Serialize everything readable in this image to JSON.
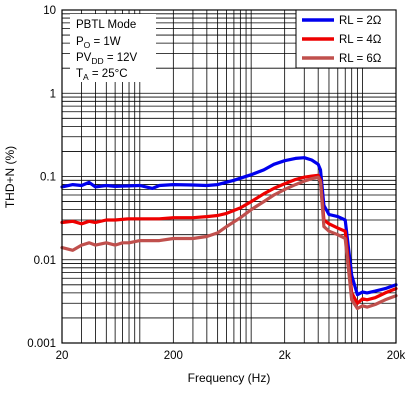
{
  "chart_data": {
    "type": "line",
    "xlabel": "Frequency (Hz)",
    "ylabel": "THD+N (%)",
    "x_scale": "log",
    "y_scale": "log",
    "xlim": [
      20,
      20000
    ],
    "ylim": [
      0.001,
      10
    ],
    "grid": true,
    "legend_position": "top-right",
    "x_ticks": [
      {
        "value": 20,
        "label": "20"
      },
      {
        "value": 200,
        "label": "200"
      },
      {
        "value": 2000,
        "label": "2k"
      },
      {
        "value": 20000,
        "label": "20k"
      }
    ],
    "y_ticks": [
      {
        "value": 10,
        "label": "10"
      },
      {
        "value": 1,
        "label": "1"
      },
      {
        "value": 0.1,
        "label": "0.1"
      },
      {
        "value": 0.01,
        "label": "0.01"
      },
      {
        "value": 0.001,
        "label": "0.001"
      }
    ],
    "annotation": {
      "line1": "PBTL Mode",
      "line2_main": "P",
      "line2_sub": "O",
      "line2_rest": " = 1W",
      "line3_main": "PV",
      "line3_sub": "DD",
      "line3_rest": " = 12V",
      "line4_main": "T",
      "line4_sub": "A",
      "line4_rest": " = 25°C"
    },
    "series": [
      {
        "name": "RL = 2Ω",
        "color": "#0000ee",
        "x": [
          20,
          25,
          30,
          35,
          40,
          50,
          60,
          80,
          100,
          130,
          150,
          200,
          300,
          400,
          500,
          700,
          1000,
          1300,
          1600,
          2000,
          2500,
          3000,
          3500,
          4000,
          4200,
          4500,
          5000,
          6000,
          7000,
          8000,
          9000,
          10000,
          11000,
          13000,
          16000,
          20000
        ],
        "y": [
          0.075,
          0.08,
          0.078,
          0.085,
          0.075,
          0.078,
          0.076,
          0.077,
          0.078,
          0.072,
          0.078,
          0.08,
          0.079,
          0.078,
          0.08,
          0.09,
          0.105,
          0.12,
          0.14,
          0.155,
          0.165,
          0.168,
          0.158,
          0.14,
          0.12,
          0.045,
          0.035,
          0.033,
          0.03,
          0.0065,
          0.0038,
          0.0041,
          0.004,
          0.0042,
          0.0045,
          0.005
        ]
      },
      {
        "name": "RL = 4Ω",
        "color": "#ee0000",
        "x": [
          20,
          25,
          30,
          35,
          40,
          50,
          60,
          80,
          100,
          150,
          200,
          300,
          400,
          500,
          600,
          800,
          1000,
          1300,
          1600,
          2000,
          2500,
          3000,
          3500,
          4000,
          4200,
          4500,
          5000,
          6000,
          7000,
          8000,
          9000,
          10000,
          11000,
          13000,
          16000,
          20000
        ],
        "y": [
          0.028,
          0.029,
          0.027,
          0.029,
          0.028,
          0.03,
          0.03,
          0.031,
          0.031,
          0.031,
          0.032,
          0.032,
          0.033,
          0.034,
          0.036,
          0.042,
          0.05,
          0.062,
          0.072,
          0.082,
          0.092,
          0.098,
          0.101,
          0.103,
          0.09,
          0.03,
          0.027,
          0.024,
          0.022,
          0.004,
          0.003,
          0.0034,
          0.0033,
          0.0035,
          0.004,
          0.0045
        ]
      },
      {
        "name": "RL = 6Ω",
        "color": "#c0504d",
        "x": [
          20,
          25,
          30,
          35,
          40,
          50,
          60,
          70,
          80,
          100,
          150,
          200,
          300,
          400,
          500,
          600,
          800,
          1000,
          1300,
          1600,
          2000,
          2500,
          3000,
          3500,
          4000,
          4200,
          4500,
          5000,
          6000,
          7000,
          8000,
          9000,
          10000,
          11000,
          13000,
          16000,
          20000
        ],
        "y": [
          0.014,
          0.013,
          0.015,
          0.016,
          0.015,
          0.016,
          0.015,
          0.016,
          0.016,
          0.017,
          0.017,
          0.018,
          0.018,
          0.019,
          0.021,
          0.025,
          0.032,
          0.04,
          0.05,
          0.06,
          0.07,
          0.08,
          0.088,
          0.094,
          0.098,
          0.085,
          0.025,
          0.022,
          0.02,
          0.018,
          0.0033,
          0.0026,
          0.0028,
          0.0027,
          0.0029,
          0.0033,
          0.0037
        ]
      }
    ]
  }
}
